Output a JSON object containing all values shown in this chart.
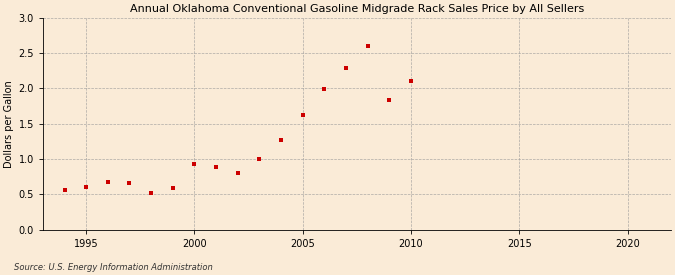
{
  "title": "Annual Oklahoma Conventional Gasoline Midgrade Rack Sales Price by All Sellers",
  "ylabel": "Dollars per Gallon",
  "source": "Source: U.S. Energy Information Administration",
  "background_color": "#faebd7",
  "marker_color": "#cc0000",
  "xlim": [
    1993,
    2022
  ],
  "ylim": [
    0.0,
    3.0
  ],
  "xticks": [
    1995,
    2000,
    2005,
    2010,
    2015,
    2020
  ],
  "yticks": [
    0.0,
    0.5,
    1.0,
    1.5,
    2.0,
    2.5,
    3.0
  ],
  "years": [
    1994,
    1995,
    1996,
    1997,
    1998,
    1999,
    2000,
    2001,
    2002,
    2003,
    2004,
    2005,
    2006,
    2007,
    2008,
    2009,
    2010
  ],
  "values": [
    0.56,
    0.6,
    0.67,
    0.66,
    0.52,
    0.59,
    0.93,
    0.89,
    0.81,
    1.0,
    1.27,
    1.62,
    1.99,
    2.29,
    2.6,
    1.83,
    2.1
  ]
}
